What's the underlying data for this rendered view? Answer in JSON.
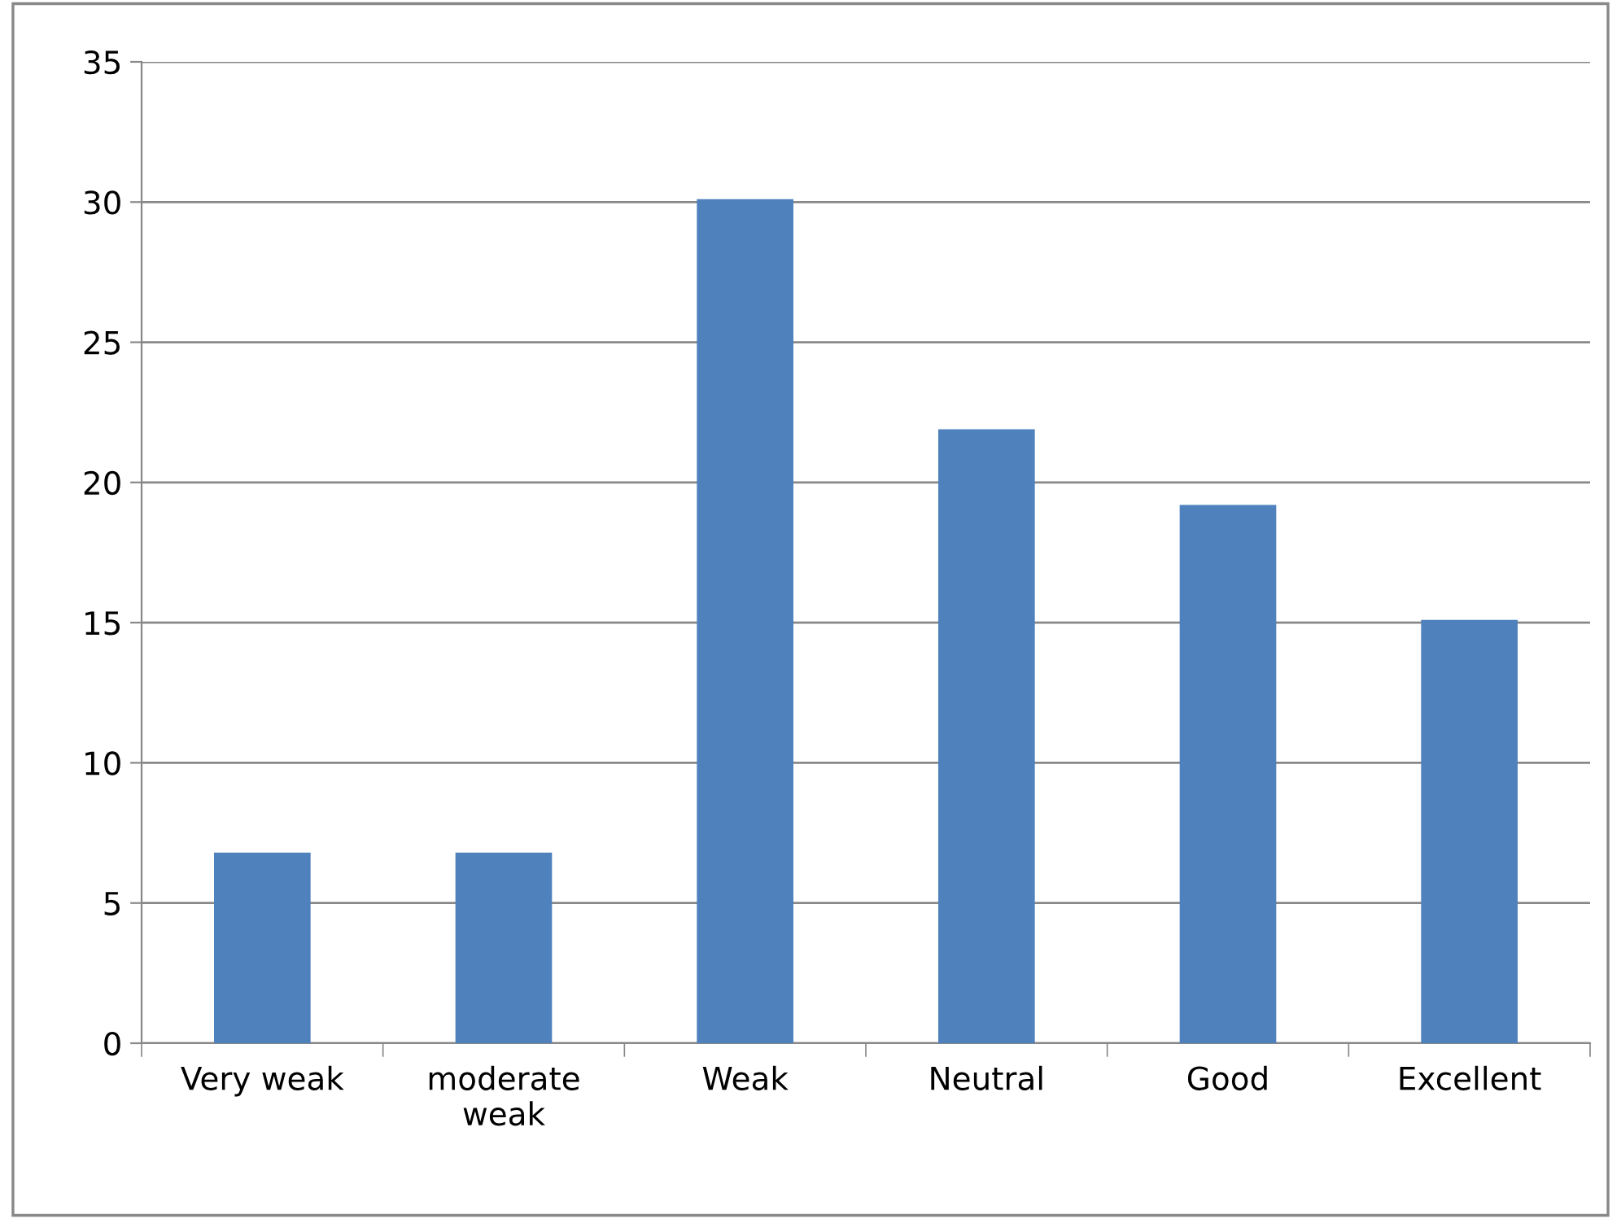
{
  "chart_data": {
    "type": "bar",
    "categories": [
      "Very weak",
      "moderate\nweak",
      "Weak",
      "Neutral",
      "Good",
      "Excellent"
    ],
    "values": [
      6.8,
      6.8,
      30.1,
      21.9,
      19.2,
      15.1
    ],
    "color": "#4f81bd",
    "ylim": [
      0,
      35
    ],
    "yticks": [
      0,
      5,
      10,
      15,
      20,
      25,
      30,
      35
    ],
    "grid": "y",
    "legend": false
  }
}
